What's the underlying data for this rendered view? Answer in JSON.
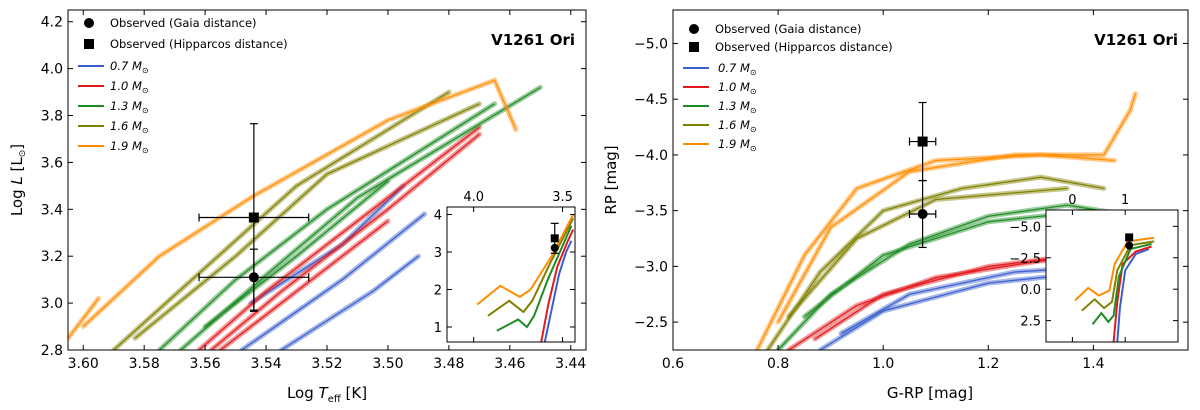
{
  "figure": {
    "panels": [
      {
        "id": "left",
        "title": "V1261 Ori",
        "xlabel_main": "Log ",
        "xlabel_sym": "T",
        "xlabel_sub": "eff",
        "xlabel_unit": " [K]",
        "ylabel_main": "Log ",
        "ylabel_sym": "L",
        "ylabel_unit": " [L",
        "ylabel_sun": "⊙",
        "ylabel_close": "]",
        "legend": [
          "Observed (Gaia distance)",
          "Observed (Hipparcos distance)",
          "0.7 M",
          "1.0 M",
          "1.3 M",
          "1.6 M",
          "1.9 M"
        ]
      },
      {
        "id": "right",
        "title": "V1261 Ori",
        "xlabel": "G-RP [mag]",
        "ylabel": "RP [mag]",
        "legend": [
          "Observed (Gaia distance)",
          "Observed (Hipparcos distance)",
          "0.7 M",
          "1.0 M",
          "1.3 M",
          "1.6 M",
          "1.9 M"
        ]
      }
    ]
  },
  "chart_data": [
    {
      "type": "line",
      "title": "V1261 Ori",
      "xlabel": "Log T_eff [K]",
      "ylabel": "Log L [L_sun]",
      "xlim": [
        3.605,
        3.435
      ],
      "ylim": [
        2.8,
        4.25
      ],
      "xticks": [
        3.6,
        3.58,
        3.56,
        3.54,
        3.52,
        3.5,
        3.48,
        3.46,
        3.44
      ],
      "xtick_labels": [
        "3.60",
        "3.58",
        "3.56",
        "3.54",
        "3.52",
        "3.50",
        "3.48",
        "3.46",
        "3.44"
      ],
      "yticks": [
        2.8,
        3.0,
        3.2,
        3.4,
        3.6,
        3.8,
        4.0,
        4.2
      ],
      "ytick_labels": [
        "2.8",
        "3.0",
        "3.2",
        "3.4",
        "3.6",
        "3.8",
        "4.0",
        "4.2"
      ],
      "series": [
        {
          "name": "0.7 M_sun",
          "color": "#3a5fcd",
          "tracks": [
            [
              [
                3.548,
                2.8
              ],
              [
                3.515,
                3.1
              ],
              [
                3.488,
                3.38
              ]
            ],
            [
              [
                3.535,
                2.8
              ],
              [
                3.505,
                3.05
              ],
              [
                3.49,
                3.2
              ]
            ],
            [
              [
                3.545,
                3.0
              ],
              [
                3.515,
                3.25
              ],
              [
                3.495,
                3.5
              ]
            ]
          ]
        },
        {
          "name": "1.0 M_sun",
          "color": "#e31a1c",
          "tracks": [
            [
              [
                3.562,
                2.8
              ],
              [
                3.54,
                3.05
              ],
              [
                3.515,
                3.3
              ],
              [
                3.47,
                3.75
              ]
            ],
            [
              [
                3.558,
                2.8
              ],
              [
                3.535,
                3.05
              ],
              [
                3.5,
                3.4
              ],
              [
                3.47,
                3.72
              ]
            ],
            [
              [
                3.555,
                2.8
              ],
              [
                3.53,
                3.05
              ],
              [
                3.5,
                3.35
              ]
            ]
          ]
        },
        {
          "name": "1.3 M_sun",
          "color": "#1f8b24",
          "tracks": [
            [
              [
                3.575,
                2.8
              ],
              [
                3.55,
                3.1
              ],
              [
                3.52,
                3.4
              ],
              [
                3.465,
                3.85
              ]
            ],
            [
              [
                3.568,
                2.8
              ],
              [
                3.54,
                3.12
              ],
              [
                3.51,
                3.45
              ],
              [
                3.45,
                3.92
              ]
            ],
            [
              [
                3.56,
                2.9
              ],
              [
                3.53,
                3.2
              ],
              [
                3.5,
                3.52
              ]
            ]
          ]
        },
        {
          "name": "1.6 M_sun",
          "color": "#808000",
          "tracks": [
            [
              [
                3.59,
                2.8
              ],
              [
                3.56,
                3.15
              ],
              [
                3.53,
                3.5
              ],
              [
                3.48,
                3.9
              ]
            ],
            [
              [
                3.583,
                2.85
              ],
              [
                3.55,
                3.2
              ],
              [
                3.52,
                3.55
              ],
              [
                3.47,
                3.85
              ]
            ]
          ]
        },
        {
          "name": "1.9 M_sun",
          "color": "#ff8c00",
          "tracks": [
            [
              [
                3.605,
                2.85
              ],
              [
                3.595,
                3.02
              ]
            ],
            [
              [
                3.6,
                2.9
              ],
              [
                3.575,
                3.2
              ],
              [
                3.545,
                3.45
              ],
              [
                3.5,
                3.78
              ],
              [
                3.465,
                3.95
              ],
              [
                3.458,
                3.74
              ]
            ]
          ]
        }
      ],
      "observations": [
        {
          "name": "Observed (Gaia distance)",
          "marker": "circle",
          "x": 3.544,
          "y": 3.11,
          "xerr": 0.018,
          "yerr_low": 0.14,
          "yerr_high": 0.12
        },
        {
          "name": "Observed (Hipparcos distance)",
          "marker": "square",
          "x": 3.544,
          "y": 3.365,
          "xerr": 0.018,
          "yerr_low": 0.4,
          "yerr_high": 0.4
        }
      ],
      "inset": {
        "xlim": [
          4.15,
          3.43
        ],
        "ylim": [
          0.6,
          4.2
        ],
        "xticks": [
          4.0,
          3.5
        ],
        "xtick_labels": [
          "4.0",
          "3.5"
        ],
        "yticks": [
          1,
          2,
          3,
          4
        ],
        "ytick_labels": [
          "1",
          "2",
          "3",
          "4"
        ],
        "tracks": [
          {
            "color": "#3a5fcd",
            "points": [
              [
                3.6,
                0.6
              ],
              [
                3.56,
                1.5
              ],
              [
                3.52,
                2.4
              ],
              [
                3.48,
                3.0
              ],
              [
                3.45,
                3.3
              ]
            ]
          },
          {
            "color": "#e31a1c",
            "points": [
              [
                3.62,
                0.6
              ],
              [
                3.58,
                1.6
              ],
              [
                3.53,
                2.6
              ],
              [
                3.47,
                3.3
              ],
              [
                3.44,
                3.6
              ]
            ]
          },
          {
            "color": "#1f8b24",
            "points": [
              [
                3.87,
                0.9
              ],
              [
                3.75,
                1.2
              ],
              [
                3.7,
                1.0
              ],
              [
                3.66,
                1.3
              ],
              [
                3.58,
                2.3
              ],
              [
                3.45,
                3.7
              ]
            ]
          },
          {
            "color": "#808000",
            "points": [
              [
                3.92,
                1.3
              ],
              [
                3.8,
                1.7
              ],
              [
                3.72,
                1.4
              ],
              [
                3.67,
                1.7
              ],
              [
                3.57,
                2.7
              ],
              [
                3.44,
                3.9
              ]
            ]
          },
          {
            "color": "#ff8c00",
            "points": [
              [
                3.98,
                1.6
              ],
              [
                3.85,
                2.1
              ],
              [
                3.74,
                1.8
              ],
              [
                3.68,
                2.0
              ],
              [
                3.56,
                2.9
              ],
              [
                3.44,
                4.0
              ]
            ]
          }
        ],
        "observations": [
          {
            "marker": "circle",
            "x": 3.544,
            "y": 3.11
          },
          {
            "marker": "square",
            "x": 3.544,
            "y": 3.365,
            "yerr": 0.4
          }
        ]
      }
    },
    {
      "type": "line",
      "title": "V1261 Ori",
      "xlabel": "G-RP [mag]",
      "ylabel": "RP [mag]",
      "xlim": [
        0.6,
        1.58
      ],
      "ylim": [
        -2.25,
        -5.3
      ],
      "xticks": [
        0.6,
        0.8,
        1.0,
        1.2,
        1.4
      ],
      "xtick_labels": [
        "0.6",
        "0.8",
        "1.0",
        "1.2",
        "1.4"
      ],
      "yticks": [
        -2.5,
        -3.0,
        -3.5,
        -4.0,
        -4.5,
        -5.0
      ],
      "ytick_labels": [
        "−2.5",
        "−3.0",
        "−3.5",
        "−4.0",
        "−4.5",
        "−5.0"
      ],
      "series": [
        {
          "name": "0.7 M_sun",
          "color": "#3a5fcd",
          "tracks": [
            [
              [
                0.88,
                -2.25
              ],
              [
                1.0,
                -2.6
              ],
              [
                1.2,
                -2.85
              ],
              [
                1.4,
                -2.95
              ]
            ],
            [
              [
                0.92,
                -2.4
              ],
              [
                1.05,
                -2.75
              ],
              [
                1.25,
                -2.95
              ],
              [
                1.42,
                -3.0
              ]
            ]
          ]
        },
        {
          "name": "1.0 M_sun",
          "color": "#e31a1c",
          "tracks": [
            [
              [
                0.82,
                -2.25
              ],
              [
                0.95,
                -2.65
              ],
              [
                1.1,
                -2.9
              ],
              [
                1.3,
                -3.05
              ],
              [
                1.45,
                -3.1
              ]
            ],
            [
              [
                0.87,
                -2.35
              ],
              [
                1.0,
                -2.75
              ],
              [
                1.2,
                -3.0
              ],
              [
                1.45,
                -3.15
              ]
            ]
          ]
        },
        {
          "name": "1.3 M_sun",
          "color": "#1f8b24",
          "tracks": [
            [
              [
                0.8,
                -2.25
              ],
              [
                0.9,
                -2.75
              ],
              [
                1.05,
                -3.2
              ],
              [
                1.2,
                -3.45
              ],
              [
                1.35,
                -3.55
              ],
              [
                1.48,
                -3.45
              ]
            ],
            [
              [
                0.85,
                -2.55
              ],
              [
                1.0,
                -3.1
              ],
              [
                1.2,
                -3.4
              ],
              [
                1.4,
                -3.5
              ]
            ]
          ]
        },
        {
          "name": "1.6 M_sun",
          "color": "#808000",
          "tracks": [
            [
              [
                0.78,
                -2.25
              ],
              [
                0.88,
                -2.95
              ],
              [
                1.0,
                -3.5
              ],
              [
                1.15,
                -3.7
              ],
              [
                1.3,
                -3.8
              ],
              [
                1.42,
                -3.7
              ]
            ],
            [
              [
                0.82,
                -2.55
              ],
              [
                0.95,
                -3.25
              ],
              [
                1.1,
                -3.6
              ],
              [
                1.35,
                -3.7
              ]
            ]
          ]
        },
        {
          "name": "1.9 M_sun",
          "color": "#ff8c00",
          "tracks": [
            [
              [
                0.76,
                -2.25
              ],
              [
                0.85,
                -3.1
              ],
              [
                0.95,
                -3.7
              ],
              [
                1.1,
                -3.95
              ],
              [
                1.3,
                -4.0
              ],
              [
                1.44,
                -3.95
              ]
            ],
            [
              [
                0.8,
                -2.5
              ],
              [
                0.9,
                -3.35
              ],
              [
                1.05,
                -3.85
              ],
              [
                1.25,
                -4.0
              ],
              [
                1.42,
                -4.0
              ],
              [
                1.47,
                -4.4
              ],
              [
                1.48,
                -4.55
              ]
            ]
          ]
        }
      ],
      "observations": [
        {
          "name": "Observed (Gaia distance)",
          "marker": "circle",
          "x": 1.075,
          "y": -3.47,
          "xerr": 0.025,
          "yerr_low": 0.3,
          "yerr_high": 0.3
        },
        {
          "name": "Observed (Hipparcos distance)",
          "marker": "square",
          "x": 1.075,
          "y": -4.12,
          "xerr": 0.025,
          "yerr_low": 0.35,
          "yerr_high": 0.35
        }
      ],
      "inset": {
        "xlim": [
          -0.5,
          2.0
        ],
        "ylim": [
          4.2,
          -6.3
        ],
        "xticks": [
          0,
          1
        ],
        "xtick_labels": [
          "0",
          "1"
        ],
        "yticks": [
          -5.0,
          -2.5,
          0.0,
          2.5
        ],
        "ytick_labels": [
          "−5.0",
          "−2.5",
          "0.0",
          "2.5"
        ],
        "tracks": [
          {
            "color": "#3a5fcd",
            "points": [
              [
                0.85,
                4.2
              ],
              [
                0.9,
                1.5
              ],
              [
                1.0,
                -1.5
              ],
              [
                1.2,
                -2.8
              ],
              [
                1.45,
                -3.2
              ]
            ]
          },
          {
            "color": "#e31a1c",
            "points": [
              [
                0.78,
                4.2
              ],
              [
                0.85,
                1.0
              ],
              [
                0.95,
                -2.0
              ],
              [
                1.2,
                -3.0
              ],
              [
                1.5,
                -3.4
              ]
            ]
          },
          {
            "color": "#1f8b24",
            "points": [
              [
                0.38,
                2.8
              ],
              [
                0.55,
                1.9
              ],
              [
                0.68,
                2.6
              ],
              [
                0.78,
                2.1
              ],
              [
                0.88,
                -1.0
              ],
              [
                1.1,
                -3.2
              ],
              [
                1.5,
                -3.6
              ]
            ]
          },
          {
            "color": "#808000",
            "points": [
              [
                0.18,
                1.7
              ],
              [
                0.42,
                0.8
              ],
              [
                0.6,
                1.5
              ],
              [
                0.75,
                1.0
              ],
              [
                0.85,
                -1.5
              ],
              [
                1.1,
                -3.5
              ],
              [
                1.55,
                -3.8
              ]
            ]
          },
          {
            "color": "#ff8c00",
            "points": [
              [
                0.05,
                0.9
              ],
              [
                0.3,
                -0.1
              ],
              [
                0.5,
                0.5
              ],
              [
                0.7,
                0.1
              ],
              [
                0.8,
                -2.0
              ],
              [
                1.05,
                -3.8
              ],
              [
                1.55,
                -4.1
              ]
            ]
          }
        ],
        "observations": [
          {
            "marker": "circle",
            "x": 1.075,
            "y": -3.47
          },
          {
            "marker": "square",
            "x": 1.075,
            "y": -4.12
          }
        ]
      }
    }
  ],
  "style": {
    "colors": [
      "#3a5fcd",
      "#e31a1c",
      "#1f8b24",
      "#808000",
      "#ff8c00"
    ]
  }
}
